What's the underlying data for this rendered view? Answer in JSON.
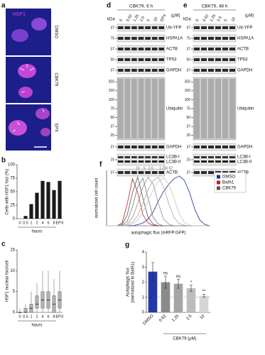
{
  "panels": {
    "a": {
      "letter": "a",
      "stain": "HSF1",
      "conditions": [
        "DMSO",
        "CBK79",
        "EPX"
      ]
    },
    "b": {
      "letter": "b"
    },
    "c": {
      "letter": "c"
    },
    "d": {
      "letter": "d",
      "title": "CBK79, 6 h",
      "unit": "(μM)",
      "kda_header": "kDa",
      "lanes": [
        "0",
        "0.62",
        "1.25",
        "2.5",
        "5",
        "10",
        "EPX"
      ],
      "rows": [
        {
          "labels": [
            "Ub-YFP"
          ],
          "kda": [
            "37"
          ]
        },
        {
          "labels": [
            "HSPA1A"
          ],
          "kda": [
            "75"
          ]
        },
        {
          "labels": [
            "ACTB"
          ],
          "kda": [
            "37"
          ]
        },
        {
          "labels": [
            "TP53"
          ],
          "kda": [
            "50"
          ]
        },
        {
          "labels": [
            "GAPDH"
          ],
          "kda": [
            "37"
          ]
        },
        {
          "labels": [
            "Ubiquitin"
          ],
          "kda": [
            "250",
            "150",
            "100",
            "75",
            "50",
            "37",
            "25"
          ]
        },
        {
          "labels": [
            "GAPDH"
          ],
          "kda": [
            "37"
          ]
        },
        {
          "labels": [
            "LC3B-I",
            "LC3B-II"
          ],
          "kda": [
            "15"
          ]
        },
        {
          "labels": [
            "ACTB"
          ],
          "kda": [
            "37"
          ]
        }
      ]
    },
    "e": {
      "letter": "e",
      "title": "CBK79, 48 h",
      "unit": "(μM)",
      "kda_header": "kDa",
      "lanes": [
        "0",
        "0.62",
        "1.25",
        "2.5",
        "5",
        "10"
      ],
      "rows": [
        {
          "labels": [
            "Ub-YFP"
          ],
          "kda": [
            "37"
          ]
        },
        {
          "labels": [
            "HSPA1A"
          ],
          "kda": [
            "75"
          ]
        },
        {
          "labels": [
            "ACTB"
          ],
          "kda": [
            "37"
          ]
        },
        {
          "labels": [
            "TP53"
          ],
          "kda": [
            "50"
          ]
        },
        {
          "labels": [
            "GAPDH"
          ],
          "kda": [
            "37"
          ]
        },
        {
          "labels": [
            "Ubiquitin"
          ],
          "kda": [
            "250",
            "150",
            "100",
            "75",
            "50",
            "37",
            "20"
          ]
        },
        {
          "labels": [
            "GAPDH"
          ],
          "kda": [
            "37"
          ]
        },
        {
          "labels": [
            "LC3B-I",
            "LC3B-II"
          ],
          "kda": [
            "15"
          ]
        },
        {
          "labels": [
            "ACTB"
          ],
          "kda": [
            "37"
          ]
        }
      ]
    },
    "f": {
      "letter": "f"
    },
    "g": {
      "letter": "g"
    }
  },
  "chart_data": [
    {
      "type": "bar",
      "ylabel": "Cells with HSF1 foci (%)",
      "xlabel": "hours",
      "categories": [
        "0",
        "0.5",
        "1",
        "2",
        "4",
        "6",
        "8",
        "EPX"
      ],
      "values": [
        0,
        5,
        27,
        48,
        70,
        68,
        53,
        70
      ],
      "color": "#1a1a1a",
      "ylim": [
        0,
        100
      ],
      "yticks": [
        0,
        25,
        50,
        75,
        100
      ]
    },
    {
      "type": "box",
      "ylabel": "HSF1 nuclear foci/cell",
      "xlabel": "hours",
      "categories": [
        "0",
        "0.5",
        "1",
        "2",
        "4",
        "6",
        "8",
        "EPX"
      ],
      "low": [
        0,
        0,
        0,
        0,
        0,
        0,
        0,
        0
      ],
      "q1": [
        0,
        0,
        0,
        1,
        1,
        1,
        0,
        1
      ],
      "median": [
        0,
        0,
        1,
        2,
        3,
        3,
        2,
        3
      ],
      "q3": [
        0,
        1,
        2,
        4,
        5,
        5,
        4,
        5
      ],
      "high": [
        1,
        2,
        5,
        7,
        10,
        10,
        8,
        10
      ],
      "color": "#b0b0b0",
      "ylim": [
        0,
        15
      ],
      "yticks": [
        0,
        5,
        10,
        15
      ]
    },
    {
      "type": "line",
      "xlabel": "autophagic flux (mRFP:GFP)",
      "ylabel": "normalized cell count",
      "x": [
        0,
        5,
        10,
        15,
        20,
        25,
        30,
        35,
        40,
        45,
        50,
        55,
        60,
        65,
        70,
        75,
        80,
        85,
        90,
        95,
        100
      ],
      "xlim": [
        0,
        100
      ],
      "ylim": [
        0,
        100
      ],
      "series": [
        {
          "name": "DMSO",
          "color": "#1f2f8f",
          "values": [
            0,
            0,
            0,
            0,
            0,
            0,
            2,
            5,
            12,
            25,
            45,
            62,
            75,
            85,
            90,
            82,
            60,
            30,
            10,
            2,
            0
          ]
        },
        {
          "name": "BafA1",
          "color": "#b22222",
          "values": [
            0,
            0,
            0,
            5,
            40,
            85,
            60,
            20,
            5,
            1,
            0,
            0,
            0,
            0,
            0,
            0,
            0,
            0,
            0,
            0,
            0
          ]
        },
        {
          "name": "CBK79",
          "curve_label": "10",
          "color": "#555555",
          "values": [
            0,
            0,
            0,
            2,
            20,
            60,
            88,
            50,
            15,
            3,
            0,
            0,
            0,
            0,
            0,
            0,
            0,
            0,
            0,
            0,
            0
          ]
        },
        {
          "curve_label": "5",
          "color": "#777777",
          "values": [
            0,
            0,
            0,
            1,
            8,
            35,
            70,
            86,
            50,
            15,
            3,
            0,
            0,
            0,
            0,
            0,
            0,
            0,
            0,
            0,
            0
          ]
        },
        {
          "curve_label": "2.5",
          "color": "#8f8f8f",
          "values": [
            0,
            0,
            0,
            0,
            3,
            15,
            40,
            70,
            88,
            75,
            40,
            12,
            3,
            0,
            0,
            0,
            0,
            0,
            0,
            0,
            0
          ]
        },
        {
          "curve_label": "1.25",
          "color": "#a8a8a8",
          "values": [
            0,
            0,
            0,
            0,
            1,
            6,
            18,
            40,
            65,
            82,
            88,
            70,
            40,
            15,
            4,
            1,
            0,
            0,
            0,
            0,
            0
          ]
        },
        {
          "curve_label": "0.62",
          "color": "#c4c4c4",
          "values": [
            0,
            0,
            0,
            0,
            0,
            3,
            10,
            25,
            45,
            65,
            80,
            87,
            75,
            50,
            22,
            6,
            1,
            0,
            0,
            0,
            0
          ]
        }
      ]
    },
    {
      "type": "bar",
      "ylabel": "Autophagic flux",
      "ylabel2": "(normalized to BafA1)",
      "xgroup_label": "CBK79 (μM)",
      "categories": [
        "DMSO",
        "0.62",
        "1.25",
        "2.5",
        "10"
      ],
      "values": [
        2.7,
        2.0,
        1.9,
        1.6,
        1.1
      ],
      "errors": [
        0.6,
        0.4,
        0.3,
        0.2,
        0.1
      ],
      "colors": [
        "#2338a8",
        "#8a8a8a",
        "#a5a5a5",
        "#bdbdbd",
        "#d5d5d5"
      ],
      "significance": [
        "ns",
        "ns",
        "*",
        "**"
      ],
      "reference_line": 1,
      "ylim": [
        0,
        4
      ],
      "yticks": [
        0,
        1,
        2,
        3,
        4
      ]
    }
  ]
}
